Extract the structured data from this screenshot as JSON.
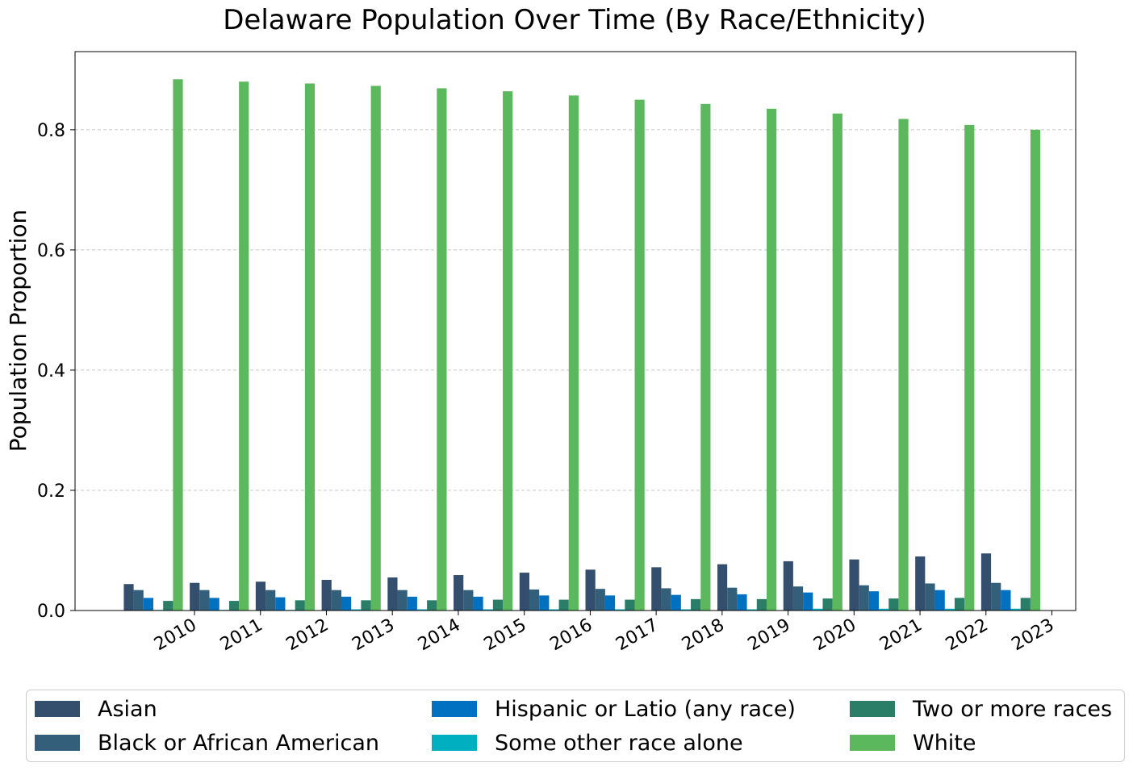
{
  "chart_data": {
    "type": "bar",
    "title": "Delaware Population Over Time (By Race/Ethnicity)",
    "xlabel": "",
    "ylabel": "Population Proportion",
    "ylim": [
      0,
      0.93
    ],
    "yticks": [
      "0.0",
      "0.2",
      "0.4",
      "0.6",
      "0.8"
    ],
    "grid": "y-dashed",
    "legend_position": "bottom",
    "categories": [
      "2010",
      "2011",
      "2012",
      "2013",
      "2014",
      "2015",
      "2016",
      "2017",
      "2018",
      "2019",
      "2020",
      "2021",
      "2022",
      "2023"
    ],
    "series": [
      {
        "name": "Asian",
        "color": "#344e6e",
        "values": [
          0.044,
          0.046,
          0.048,
          0.051,
          0.055,
          0.059,
          0.063,
          0.068,
          0.072,
          0.077,
          0.082,
          0.085,
          0.09,
          0.095
        ]
      },
      {
        "name": "Black or African American",
        "color": "#335f7a",
        "values": [
          0.034,
          0.034,
          0.034,
          0.034,
          0.034,
          0.034,
          0.035,
          0.036,
          0.037,
          0.038,
          0.04,
          0.042,
          0.045,
          0.046
        ]
      },
      {
        "name": "Hispanic or Latio (any race)",
        "color": "#0070c0",
        "values": [
          0.021,
          0.021,
          0.022,
          0.023,
          0.023,
          0.023,
          0.025,
          0.025,
          0.026,
          0.027,
          0.03,
          0.032,
          0.034,
          0.034
        ]
      },
      {
        "name": "Some other race alone",
        "color": "#00b0c0",
        "values": [
          0.001,
          0.001,
          0.001,
          0.002,
          0.002,
          0.002,
          0.002,
          0.002,
          0.002,
          0.002,
          0.003,
          0.003,
          0.003,
          0.003
        ]
      },
      {
        "name": "Two or more races",
        "color": "#2a7d66",
        "values": [
          0.016,
          0.016,
          0.017,
          0.017,
          0.017,
          0.018,
          0.018,
          0.018,
          0.019,
          0.019,
          0.02,
          0.02,
          0.021,
          0.021
        ]
      },
      {
        "name": "White",
        "color": "#5cb85c",
        "values": [
          0.884,
          0.88,
          0.877,
          0.873,
          0.869,
          0.864,
          0.857,
          0.85,
          0.843,
          0.835,
          0.827,
          0.818,
          0.808,
          0.8
        ]
      }
    ]
  }
}
